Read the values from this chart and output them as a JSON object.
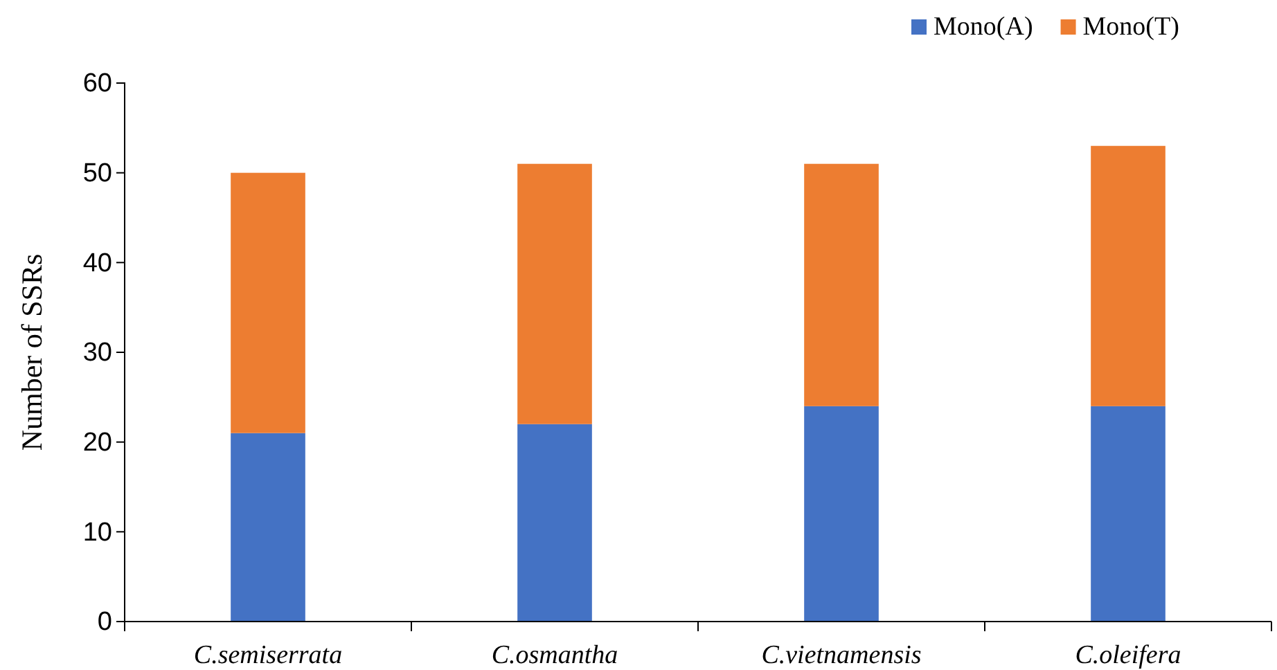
{
  "chart_data": {
    "type": "bar",
    "stacked": true,
    "ylabel": "Number of SSRs",
    "categories": [
      "C.semiserrata",
      "C.osmantha",
      "C.vietnamensis",
      "C.oleifera"
    ],
    "series": [
      {
        "name": "Mono(A)",
        "color": "#4472c4",
        "values": [
          21,
          22,
          24,
          24
        ]
      },
      {
        "name": "Mono(T)",
        "color": "#ed7d31",
        "values": [
          29,
          29,
          27,
          29
        ]
      }
    ],
    "ylim": [
      0,
      60
    ],
    "yticks": [
      0,
      10,
      20,
      30,
      40,
      50,
      60
    ],
    "grid": false,
    "legend": "top right"
  }
}
